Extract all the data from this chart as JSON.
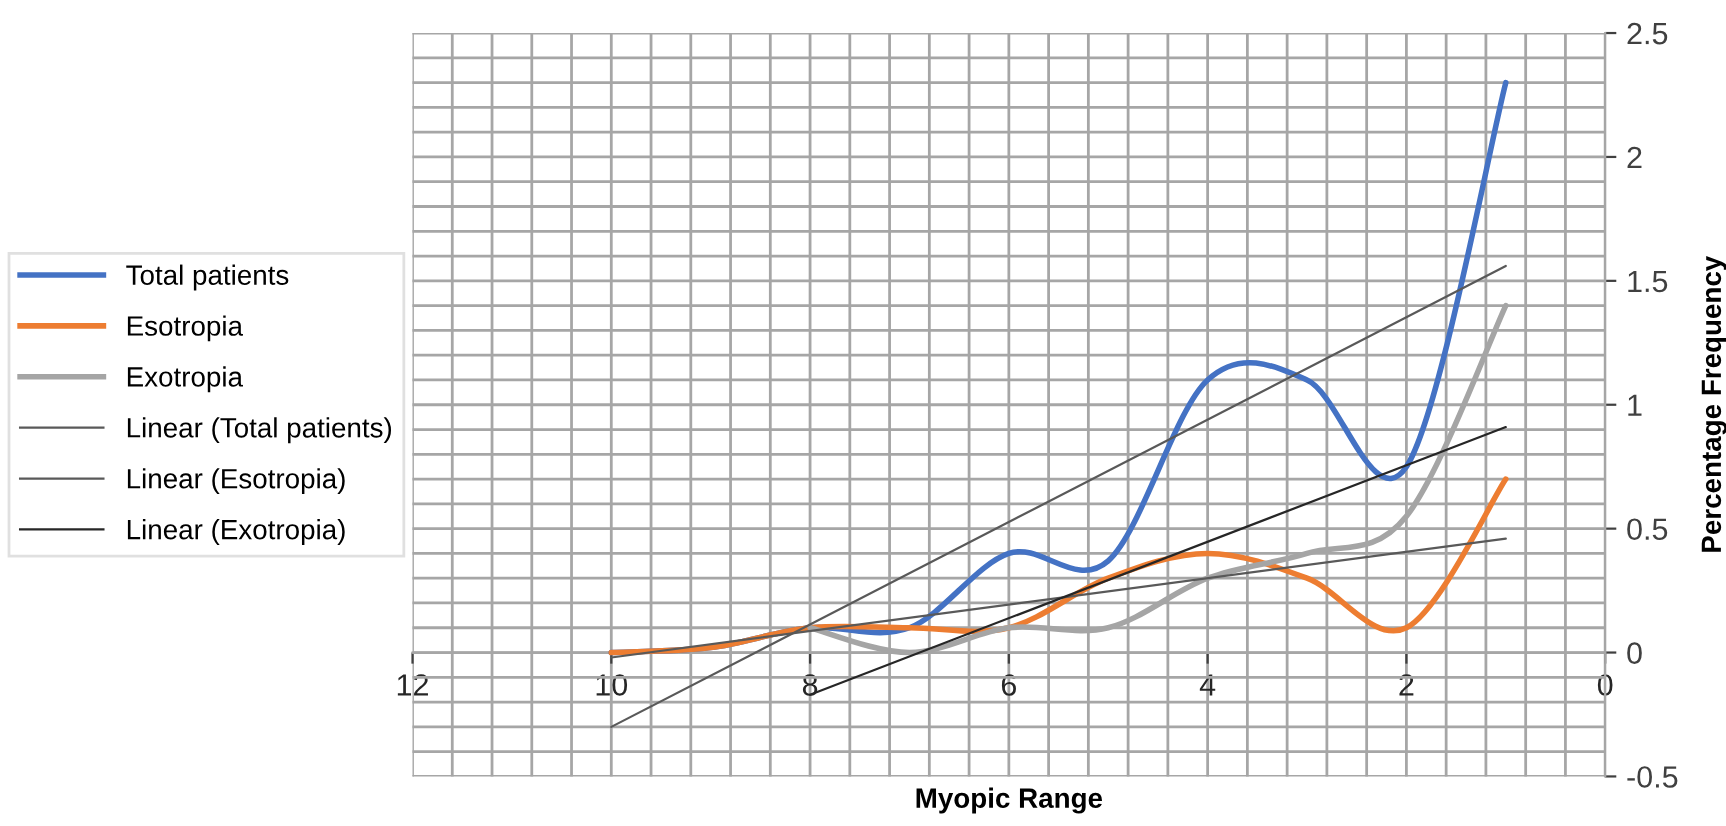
{
  "chart_data": {
    "type": "line",
    "xlabel": "Myopic Range",
    "ylabel": "Percentage Frequency",
    "x": [
      10,
      9,
      8,
      7,
      6,
      5,
      4,
      3,
      2,
      1
    ],
    "series": [
      {
        "name": "Total patients",
        "color": "#4472c4",
        "values": [
          0,
          0.02,
          0.1,
          0.1,
          0.4,
          0.37,
          1.1,
          1.1,
          0.75,
          2.3
        ]
      },
      {
        "name": "Esotropia",
        "color": "#ed7d31",
        "values": [
          0,
          0.02,
          0.1,
          0.1,
          0.1,
          0.3,
          0.4,
          0.3,
          0.1,
          0.7
        ]
      },
      {
        "name": "Exotropia",
        "color": "#a5a5a5",
        "values": [
          null,
          null,
          0.1,
          0.0,
          0.1,
          0.1,
          0.3,
          0.4,
          0.55,
          1.4
        ]
      },
      {
        "name": "Linear (Total patients)",
        "color": "#595959",
        "x": [
          10,
          1
        ],
        "values": [
          -0.3,
          1.56
        ]
      },
      {
        "name": "Linear (Esotropia)",
        "color": "#595959",
        "x": [
          10,
          1
        ],
        "values": [
          -0.02,
          0.46
        ]
      },
      {
        "name": "Linear (Exotropia)",
        "color": "#262626",
        "x": [
          8,
          1
        ],
        "values": [
          -0.17,
          0.91
        ]
      }
    ],
    "xlim": [
      12,
      0
    ],
    "xticks": [
      12,
      10,
      8,
      6,
      4,
      2,
      0
    ],
    "ylim": [
      -0.5,
      2.5
    ],
    "yticks": [
      -0.5,
      0,
      0.5,
      1,
      1.5,
      2,
      2.5
    ],
    "grid": true,
    "legend": "left",
    "marker": "none",
    "line_style": "solid"
  }
}
